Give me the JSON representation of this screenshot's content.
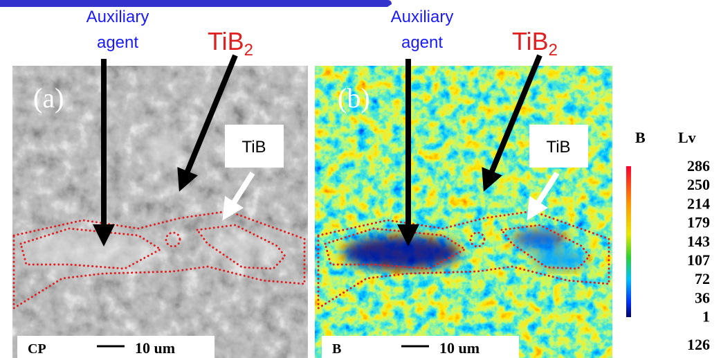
{
  "panels": [
    {
      "label": "(a)",
      "auxiliary": [
        "Auxiliary",
        "agent"
      ],
      "tib2": {
        "base": "TiB",
        "sub": "2"
      },
      "tib": "TiB",
      "mode": "CP",
      "scale": "10 um"
    },
    {
      "label": "(b)",
      "auxiliary": [
        "Auxiliary",
        "agent"
      ],
      "tib2": {
        "base": "TiB",
        "sub": "2"
      },
      "tib": "TiB",
      "mode": "B",
      "scale": "10 um"
    }
  ],
  "colorbar": {
    "element": "B",
    "unit": "Lv",
    "levels": [
      286,
      250,
      214,
      179,
      143,
      107,
      72,
      36,
      1
    ],
    "value": 126
  }
}
